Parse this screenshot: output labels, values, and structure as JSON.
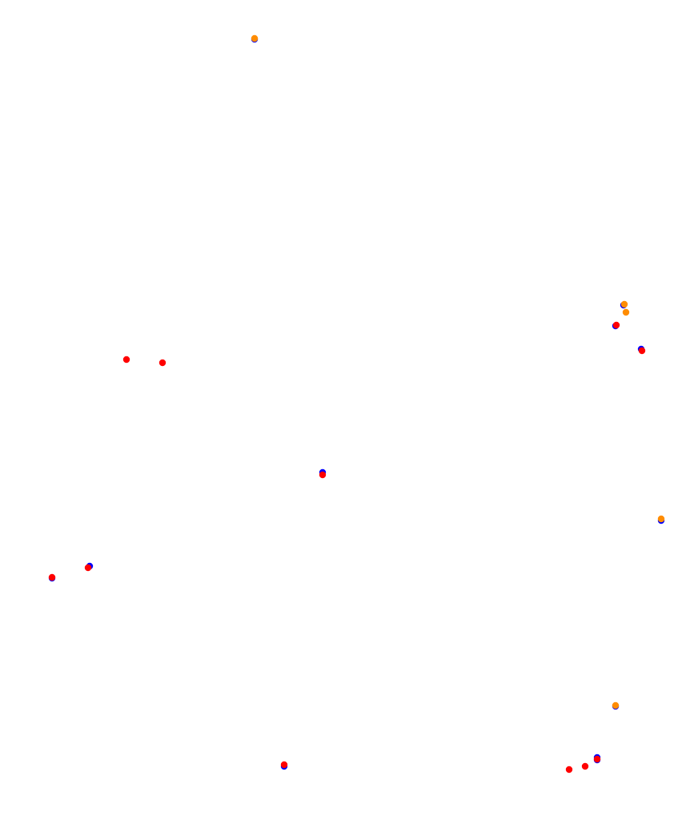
{
  "colors": {
    "background": "#ffffff",
    "blue": "#0000ff",
    "red": "#ff0000",
    "orange": "#ff8c00"
  },
  "marker_groups": [
    "blue",
    "red",
    "orange"
  ]
}
